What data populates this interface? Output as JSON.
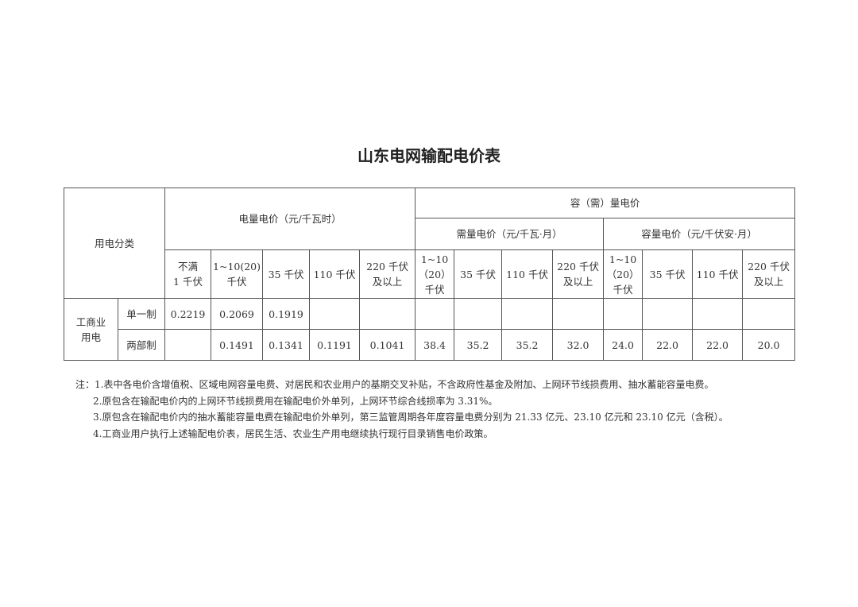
{
  "title": "山东电网输配电价表",
  "table": {
    "category_header": "用电分类",
    "energy_price_header": "电量电价（元/千瓦时）",
    "capacity_demand_header": "容（需）量电价",
    "demand_price_header": "需量电价（元/千瓦·月）",
    "capacity_price_header": "容量电价（元/千伏安·月）",
    "energy_voltage_levels": [
      [
        "不满",
        "1 千伏"
      ],
      [
        "1~10(20)",
        "千伏"
      ],
      [
        "35 千伏"
      ],
      [
        "110 千伏"
      ],
      [
        "220 千伏",
        "及以上"
      ]
    ],
    "demand_voltage_levels": [
      [
        "1~10",
        "（20）",
        "千伏"
      ],
      [
        "35 千伏"
      ],
      [
        "110 千伏"
      ],
      [
        "220 千伏",
        "及以上"
      ]
    ],
    "capacity_voltage_levels": [
      [
        "1~10",
        "（20）",
        "千伏"
      ],
      [
        "35 千伏"
      ],
      [
        "110 千伏"
      ],
      [
        "220 千伏",
        "及以上"
      ]
    ],
    "group_label": "工商业\n用电",
    "rows": [
      {
        "label": "单一制",
        "values": [
          "0.2219",
          "0.2069",
          "0.1919",
          "",
          "",
          "",
          "",
          "",
          "",
          "",
          "",
          "",
          ""
        ]
      },
      {
        "label": "两部制",
        "values": [
          "",
          "0.1491",
          "0.1341",
          "0.1191",
          "0.1041",
          "38.4",
          "35.2",
          "35.2",
          "32.0",
          "24.0",
          "22.0",
          "22.0",
          "20.0"
        ]
      }
    ]
  },
  "notes": [
    "注：1.表中各电价含增值税、区域电网容量电费、对居民和农业用户的基期交叉补贴，不含政府性基金及附加、上网环节线损费用、抽水蓄能容量电费。",
    "2.原包含在输配电价内的上网环节线损费用在输配电价外单列，上网环节综合线损率为 3.31%。",
    "3.原包含在输配电价内的抽水蓄能容量电费在输配电价外单列，第三监管周期各年度容量电费分别为 21.33 亿元、23.10 亿元和 23.10 亿元（含税）。",
    "4.工商业用户执行上述输配电价表，居民生活、农业生产用电继续执行现行目录销售电价政策。"
  ]
}
